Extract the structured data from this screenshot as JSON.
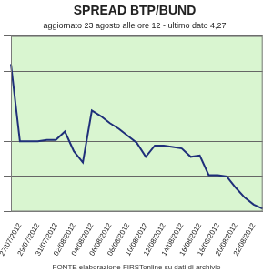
{
  "chart_data": {
    "type": "line",
    "title": "SPREAD BTP/BUND",
    "subtitle": "aggiornato 23 agosto alle ore 12 - ultimo dato 4,27",
    "annotations": [
      "FONTE elaborazione FIRSTonline su dati di archivio"
    ],
    "categories": [
      null,
      "27/07/2012",
      null,
      "29/07/2012",
      null,
      "31/07/2012",
      null,
      "02/08/2012",
      null,
      "04/08/2012",
      null,
      "06/08/2012",
      null,
      "08/08/2012",
      null,
      "10/08/2012",
      null,
      "12/08/2012",
      null,
      "14/08/2012",
      null,
      "16/08/2012",
      null,
      "18/08/2012",
      null,
      "20/08/2012",
      null,
      "22/08/2012",
      null
    ],
    "values": [
      5.3,
      4.75,
      4.75,
      4.75,
      4.76,
      4.76,
      4.82,
      4.68,
      4.6,
      4.97,
      4.93,
      4.88,
      4.84,
      4.79,
      4.74,
      4.64,
      4.72,
      4.72,
      4.71,
      4.7,
      4.64,
      4.65,
      4.51,
      4.51,
      4.5,
      4.42,
      4.35,
      4.3,
      4.27
    ],
    "color": "#1f2f7a",
    "ylim": [
      4.25,
      5.5
    ],
    "yticks": [
      4.25,
      4.5,
      4.75,
      5,
      5.25,
      5.5
    ],
    "grid": true,
    "tick_labels": "x"
  }
}
